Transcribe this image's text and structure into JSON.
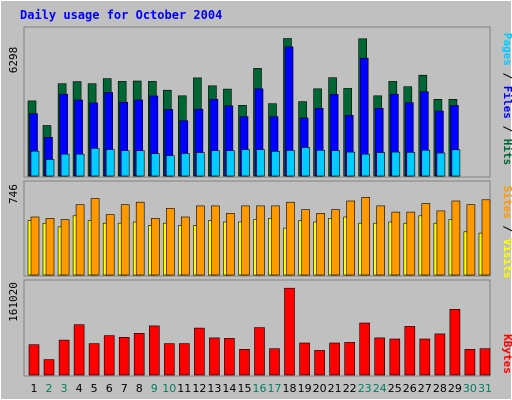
{
  "chart_data": [
    {
      "type": "bar",
      "title": "Daily usage for October 2004",
      "panel": "top",
      "ymax_label": "6298",
      "categories": [
        "1",
        "2",
        "3",
        "4",
        "5",
        "6",
        "7",
        "8",
        "9",
        "10",
        "11",
        "12",
        "13",
        "14",
        "15",
        "16",
        "17",
        "18",
        "19",
        "20",
        "21",
        "22",
        "23",
        "24",
        "25",
        "26",
        "27",
        "28",
        "29",
        "30",
        "31"
      ],
      "series": [
        {
          "name": "Hits",
          "color": "#006633",
          "values": [
            3240,
            2180,
            3980,
            4070,
            3980,
            4200,
            4080,
            4100,
            4080,
            3700,
            3460,
            4230,
            3890,
            3750,
            3050,
            4640,
            3120,
            5930,
            3210,
            3760,
            4240,
            3780,
            5920,
            3460,
            4080,
            3850,
            4350,
            3310,
            3310,
            null,
            null
          ]
        },
        {
          "name": "Files",
          "color": "#0000ff",
          "values": [
            2690,
            1670,
            3530,
            3280,
            3150,
            3600,
            3180,
            3280,
            3450,
            2870,
            2380,
            2880,
            3310,
            3030,
            2560,
            3760,
            2560,
            5570,
            2500,
            2920,
            3520,
            2620,
            5080,
            2920,
            3530,
            3160,
            3630,
            2800,
            3040,
            null,
            null
          ]
        },
        {
          "name": "Pages",
          "color": "#00ccff",
          "values": [
            1070,
            710,
            940,
            940,
            1190,
            1140,
            1090,
            1090,
            960,
            880,
            970,
            1010,
            1090,
            1090,
            1140,
            1140,
            1060,
            1100,
            1230,
            1110,
            1090,
            1030,
            940,
            1010,
            1030,
            1020,
            1110,
            990,
            1130,
            null,
            null
          ]
        }
      ],
      "legend": [
        "Pages",
        "Files",
        "Hits"
      ]
    },
    {
      "type": "bar",
      "panel": "middle",
      "ymax_label": "746",
      "categories": [
        "1",
        "2",
        "3",
        "4",
        "5",
        "6",
        "7",
        "8",
        "9",
        "10",
        "11",
        "12",
        "13",
        "14",
        "15",
        "16",
        "17",
        "18",
        "19",
        "20",
        "21",
        "22",
        "23",
        "24",
        "25",
        "26",
        "27",
        "28",
        "29",
        "30",
        "31"
      ],
      "series": [
        {
          "name": "Visits",
          "color": "#ffff00",
          "values": [
            null,
            null,
            null,
            null,
            null,
            null,
            null,
            null,
            null,
            null,
            null,
            null,
            null,
            null,
            null,
            null,
            null,
            null,
            null,
            null,
            null,
            null,
            null,
            null,
            null,
            null,
            null,
            null,
            null,
            null,
            null
          ]
        },
        {
          "name": "Sites",
          "color": "#ff9900",
          "values": [
            null,
            null,
            null,
            null,
            null,
            null,
            null,
            null,
            null,
            null,
            null,
            null,
            null,
            null,
            null,
            null,
            null,
            null,
            null,
            null,
            null,
            null,
            null,
            null,
            null,
            null,
            null,
            null,
            null,
            null,
            null
          ]
        }
      ],
      "legend": [
        "Sites",
        "Visits"
      ]
    },
    {
      "type": "bar",
      "panel": "bottom",
      "ymax_label": "161020",
      "categories": [
        "1",
        "2",
        "3",
        "4",
        "5",
        "6",
        "7",
        "8",
        "9",
        "10",
        "11",
        "12",
        "13",
        "14",
        "15",
        "16",
        "17",
        "18",
        "19",
        "20",
        "21",
        "22",
        "23",
        "24",
        "25",
        "26",
        "27",
        "28",
        "29",
        "30",
        "31"
      ],
      "series": [
        {
          "name": "KBytes",
          "color": "#ff0000",
          "values": [
            null,
            null,
            null,
            null,
            null,
            null,
            null,
            null,
            null,
            null,
            null,
            null,
            null,
            null,
            null,
            null,
            null,
            null,
            null,
            null,
            null,
            null,
            null,
            null,
            null,
            null,
            null,
            null,
            null,
            null,
            null
          ]
        }
      ],
      "legend": [
        "KBytes"
      ]
    }
  ],
  "mid": {
    "visits": [
      440,
      420,
      390,
      480,
      440,
      420,
      420,
      430,
      400,
      420,
      400,
      400,
      440,
      430,
      430,
      450,
      460,
      380,
      440,
      430,
      460,
      470,
      420,
      420,
      430,
      420,
      480,
      420,
      450,
      350,
      340
    ],
    "sites": [
      470,
      460,
      450,
      570,
      620,
      490,
      570,
      590,
      460,
      540,
      470,
      560,
      560,
      500,
      560,
      560,
      560,
      590,
      530,
      500,
      530,
      600,
      630,
      560,
      510,
      510,
      580,
      520,
      600,
      570,
      610
    ]
  },
  "kb": {
    "values": [
      53000,
      27000,
      61000,
      88000,
      55000,
      69000,
      66000,
      73000,
      86000,
      55000,
      55000,
      82000,
      65000,
      64000,
      45000,
      83000,
      46000,
      152000,
      56000,
      43000,
      56000,
      57000,
      91000,
      65000,
      63000,
      85000,
      63000,
      72000,
      115000,
      45000,
      46000
    ]
  },
  "weekends": [
    2,
    3,
    9,
    10,
    16,
    17,
    23,
    24,
    30,
    31
  ],
  "colors": {
    "hits": "#006633",
    "files": "#0000ff",
    "pages": "#00ccff",
    "visits": "#ffff00",
    "sites": "#ff9900",
    "kbytes": "#ff0000",
    "title": "#0000ff",
    "weekday": "#000000",
    "weekend": "#00805c",
    "panel_bg": "#c0c0c0"
  }
}
